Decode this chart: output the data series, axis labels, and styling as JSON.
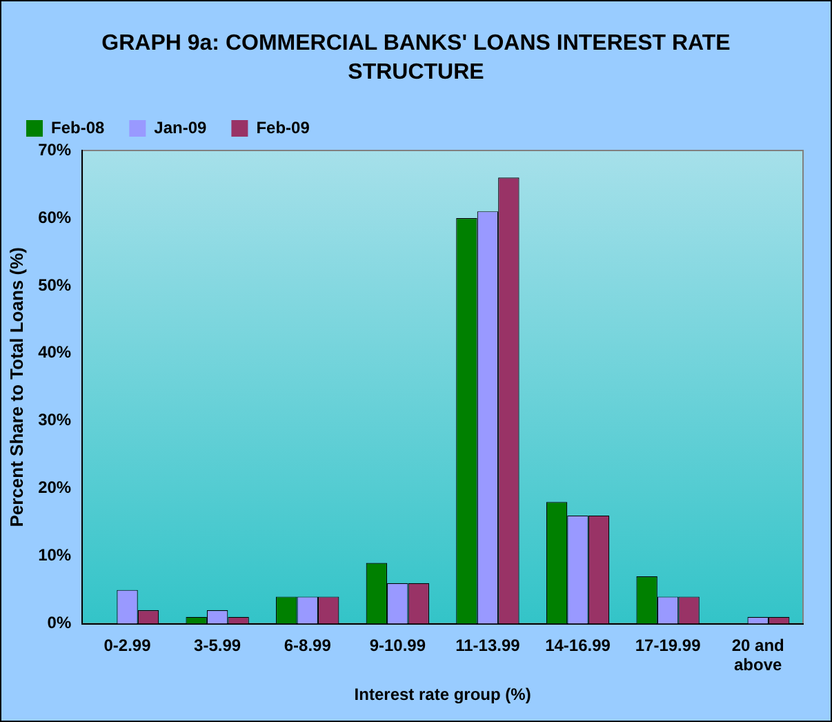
{
  "chart_data": {
    "type": "bar",
    "title": "GRAPH 9a:  COMMERCIAL BANKS' LOANS INTEREST RATE STRUCTURE",
    "xlabel": "Interest rate group (%)",
    "ylabel": "Percent Share to Total Loans (%)",
    "categories": [
      "0-2.99",
      "3-5.99",
      "6-8.99",
      "9-10.99",
      "11-13.99",
      "14-16.99",
      "17-19.99",
      "20 and above"
    ],
    "series": [
      {
        "name": "Feb-08",
        "color": "#008000",
        "values": [
          0,
          1,
          4,
          9,
          60,
          18,
          7,
          0
        ]
      },
      {
        "name": "Jan-09",
        "color": "#9999ff",
        "values": [
          5,
          2,
          4,
          6,
          61,
          16,
          4,
          1
        ]
      },
      {
        "name": "Feb-09",
        "color": "#993366",
        "values": [
          2,
          1,
          4,
          6,
          66,
          16,
          4,
          1
        ]
      }
    ],
    "ylim": [
      0,
      70
    ],
    "yticks": [
      {
        "value": 0,
        "label": "0%"
      },
      {
        "value": 10,
        "label": "10%"
      },
      {
        "value": 20,
        "label": "20%"
      },
      {
        "value": 30,
        "label": "30%"
      },
      {
        "value": 40,
        "label": "40%"
      },
      {
        "value": 50,
        "label": "50%"
      },
      {
        "value": 60,
        "label": "60%"
      },
      {
        "value": 70,
        "label": "70%"
      }
    ],
    "grid": false,
    "legend": "top left"
  }
}
